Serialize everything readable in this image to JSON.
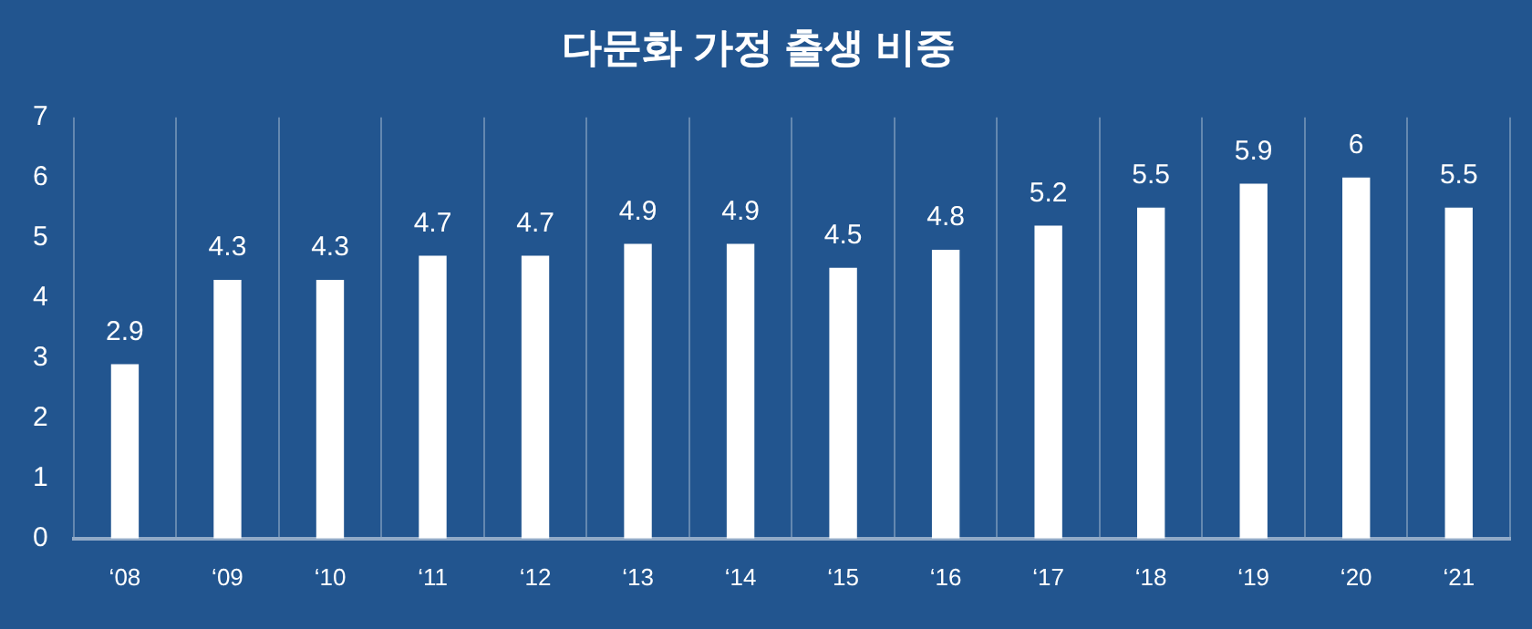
{
  "chart_data": {
    "type": "bar",
    "title": "다문화 가정 출생 비중",
    "categories": [
      "‘08",
      "‘09",
      "‘10",
      "‘11",
      "‘12",
      "‘13",
      "‘14",
      "‘15",
      "‘16",
      "‘17",
      "‘18",
      "‘19",
      "‘20",
      "‘21"
    ],
    "values": [
      2.9,
      4.3,
      4.3,
      4.7,
      4.7,
      4.9,
      4.9,
      4.5,
      4.8,
      5.2,
      5.5,
      5.9,
      6,
      5.5
    ],
    "color": "#ffffff",
    "ylim": [
      0,
      7
    ],
    "yticks": [
      0,
      1,
      2,
      3,
      4,
      5,
      6,
      7
    ],
    "grid": "x",
    "data_labels": true
  }
}
